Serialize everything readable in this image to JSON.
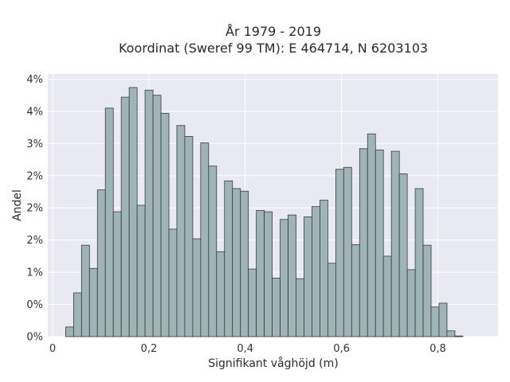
{
  "chart_data": {
    "type": "bar",
    "title_line1": "År 1979 - 2019",
    "title_line2": "Koordinat (Sweref 99 TM): E 464714, N 6203103",
    "xlabel": "Signifikant våghöjd (m)",
    "ylabel": "Andel",
    "x_ticks": [
      "0",
      "0,2",
      "0,4",
      "0,6",
      "0,8"
    ],
    "y_ticks": [
      "0%",
      "0%",
      "1%",
      "2%",
      "2%",
      "2%",
      "3%",
      "4%",
      "4%"
    ],
    "xlim": [
      -0.01,
      0.925
    ],
    "ylim": [
      0,
      4.08
    ],
    "bin_width": 0.0165,
    "bin_start": 0.027,
    "values": [
      0.15,
      0.68,
      1.42,
      1.06,
      2.28,
      3.55,
      1.94,
      3.72,
      3.87,
      2.04,
      3.83,
      3.75,
      3.47,
      1.67,
      3.28,
      3.11,
      1.52,
      3.01,
      2.65,
      1.32,
      2.42,
      2.3,
      2.26,
      1.05,
      1.96,
      1.94,
      0.91,
      1.82,
      1.89,
      0.9,
      1.86,
      2.02,
      2.12,
      1.14,
      2.6,
      2.63,
      1.43,
      2.92,
      3.15,
      2.9,
      1.25,
      2.88,
      2.53,
      1.04,
      2.3,
      1.42,
      0.46,
      0.52,
      0.09,
      0.01
    ],
    "bar_color": "#9fb5b5",
    "edge_color": "#3a3a3a",
    "plot_background": "#e9e9f1",
    "grid": true
  }
}
